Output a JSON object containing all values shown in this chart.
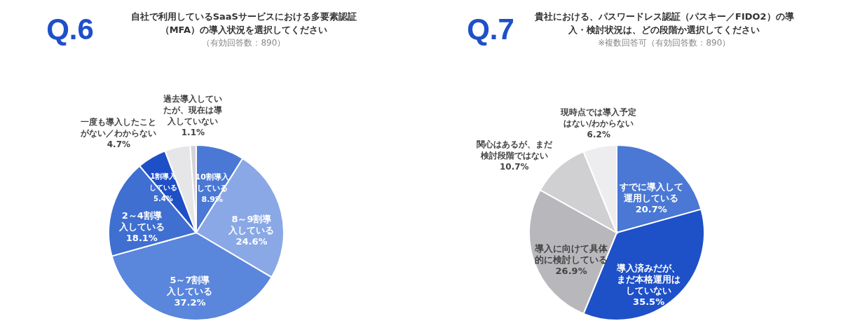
{
  "chart_data": [
    {
      "type": "pie",
      "title": "自社で利用しているSaaSサービスにおける多要素認証（MFA）の導入状況を選択してください",
      "annotations": [
        "Q.6",
        "（有効回答数：890）"
      ],
      "categories": [
        "10割導入している",
        "8～9割導入している",
        "5～7割導入している",
        "2～4割導入している",
        "1割導入している",
        "一度も導入したことがない／わからない",
        "過去導入していたが、現在は導入していない"
      ],
      "values": [
        8.9,
        24.6,
        37.2,
        18.1,
        5.4,
        4.7,
        1.1
      ],
      "value_labels": [
        "8.9%",
        "24.6%",
        "37.2%",
        "18.1%",
        "5.4%",
        "4.7%",
        "1.1%"
      ],
      "colors": [
        "#4a78d4",
        "#8aa8e6",
        "#5a86dc",
        "#3f6fd0",
        "#1e4fc6",
        "#e6e6e9",
        "#d4d4d8"
      ]
    },
    {
      "type": "pie",
      "title": "貴社における、パスワードレス認証（パスキー／FIDO2）の導入・検討状況は、どの段階か選択してください",
      "annotations": [
        "Q.7",
        "※複数回答可（有効回答数：890）"
      ],
      "categories": [
        "すでに導入して運用している",
        "導入済みだが、まだ本格運用はしていない",
        "導入に向けて具体的に検討している",
        "関心はあるが、まだ検討段階ではない",
        "現時点では導入予定はない/わからない"
      ],
      "values": [
        20.7,
        35.5,
        26.9,
        10.7,
        6.2
      ],
      "value_labels": [
        "20.7%",
        "35.5%",
        "26.9%",
        "10.7%",
        "6.2%"
      ],
      "colors": [
        "#4a78d4",
        "#1e50c8",
        "#b8b8bc",
        "#d0d0d3",
        "#ededf0"
      ]
    }
  ]
}
